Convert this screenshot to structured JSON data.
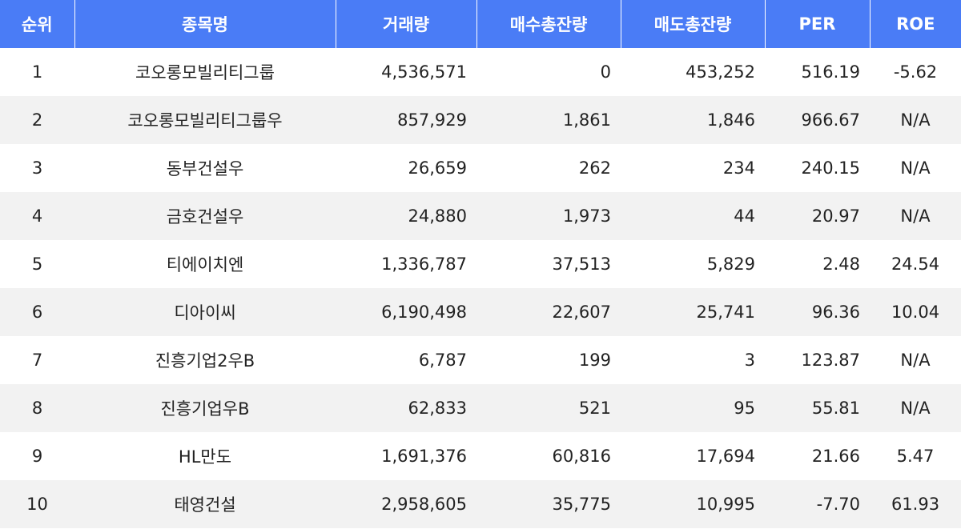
{
  "table": {
    "headers": [
      "순위",
      "종목명",
      "거래량",
      "매수총잔량",
      "매도총잔량",
      "PER",
      "ROE"
    ],
    "rows": [
      {
        "rank": "1",
        "name": "코오롱모빌리티그룹",
        "volume": "4,536,571",
        "bid_total": "0",
        "ask_total": "453,252",
        "per": "516.19",
        "roe": "-5.62"
      },
      {
        "rank": "2",
        "name": "코오롱모빌리티그룹우",
        "volume": "857,929",
        "bid_total": "1,861",
        "ask_total": "1,846",
        "per": "966.67",
        "roe": "N/A"
      },
      {
        "rank": "3",
        "name": "동부건설우",
        "volume": "26,659",
        "bid_total": "262",
        "ask_total": "234",
        "per": "240.15",
        "roe": "N/A"
      },
      {
        "rank": "4",
        "name": "금호건설우",
        "volume": "24,880",
        "bid_total": "1,973",
        "ask_total": "44",
        "per": "20.97",
        "roe": "N/A"
      },
      {
        "rank": "5",
        "name": "티에이치엔",
        "volume": "1,336,787",
        "bid_total": "37,513",
        "ask_total": "5,829",
        "per": "2.48",
        "roe": "24.54"
      },
      {
        "rank": "6",
        "name": "디아이씨",
        "volume": "6,190,498",
        "bid_total": "22,607",
        "ask_total": "25,741",
        "per": "96.36",
        "roe": "10.04"
      },
      {
        "rank": "7",
        "name": "진흥기업2우B",
        "volume": "6,787",
        "bid_total": "199",
        "ask_total": "3",
        "per": "123.87",
        "roe": "N/A"
      },
      {
        "rank": "8",
        "name": "진흥기업우B",
        "volume": "62,833",
        "bid_total": "521",
        "ask_total": "95",
        "per": "55.81",
        "roe": "N/A"
      },
      {
        "rank": "9",
        "name": "HL만도",
        "volume": "1,691,376",
        "bid_total": "60,816",
        "ask_total": "17,694",
        "per": "21.66",
        "roe": "5.47"
      },
      {
        "rank": "10",
        "name": "태영건설",
        "volume": "2,958,605",
        "bid_total": "35,775",
        "ask_total": "10,995",
        "per": "-7.70",
        "roe": "61.93"
      }
    ]
  },
  "colors": {
    "header_bg": "#4a7cf6",
    "header_text": "#ffffff",
    "stripe": "#f2f2f2"
  }
}
